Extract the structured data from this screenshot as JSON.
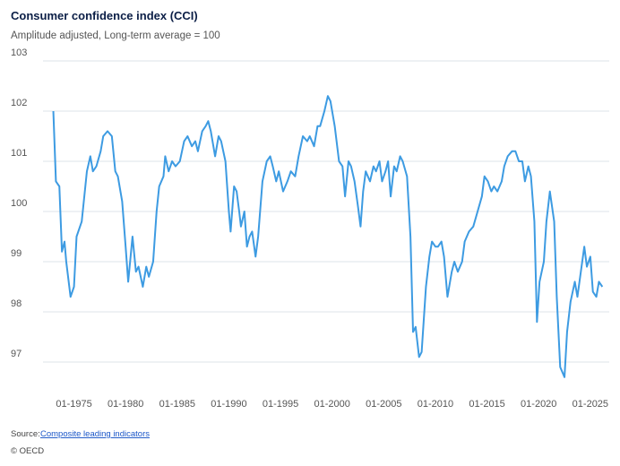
{
  "chart_data": {
    "type": "line",
    "title": "Consumer confidence index (CCI)",
    "subtitle": "Amplitude adjusted, Long-term average = 100",
    "source_label": "Source:",
    "source_link": "Composite leading indicators",
    "copyright": "© OECD",
    "color": "#3d9be2",
    "grid": true,
    "xlim": [
      "1972-01",
      "2026-11"
    ],
    "ylim": [
      96.5,
      103
    ],
    "yticks": [
      97,
      98,
      99,
      100,
      101,
      102,
      103
    ],
    "xticks": [
      {
        "value": "1975-01",
        "label": "01-1975"
      },
      {
        "value": "1980-01",
        "label": "01-1980"
      },
      {
        "value": "1985-01",
        "label": "01-1985"
      },
      {
        "value": "1990-01",
        "label": "01-1990"
      },
      {
        "value": "1995-01",
        "label": "01-1995"
      },
      {
        "value": "2000-01",
        "label": "01-2000"
      },
      {
        "value": "2005-01",
        "label": "01-2005"
      },
      {
        "value": "2010-01",
        "label": "01-2010"
      },
      {
        "value": "2015-01",
        "label": "01-2015"
      },
      {
        "value": "2020-01",
        "label": "01-2020"
      },
      {
        "value": "2025-01",
        "label": "01-2025"
      }
    ],
    "x": [
      "1973-01",
      "1973-04",
      "1973-08",
      "1973-11",
      "1974-02",
      "1974-04",
      "1974-09",
      "1975-01",
      "1975-04",
      "1975-10",
      "1976-04",
      "1976-08",
      "1976-11",
      "1977-03",
      "1977-08",
      "1977-11",
      "1978-04",
      "1978-09",
      "1979-01",
      "1979-04",
      "1979-09",
      "1980-01",
      "1980-04",
      "1980-09",
      "1981-01",
      "1981-04",
      "1981-09",
      "1982-01",
      "1982-04",
      "1982-09",
      "1983-01",
      "1983-04",
      "1983-09",
      "1983-11",
      "1984-03",
      "1984-07",
      "1984-11",
      "1985-04",
      "1985-09",
      "1986-01",
      "1986-06",
      "1986-10",
      "1987-01",
      "1987-06",
      "1987-10",
      "1988-01",
      "1988-04",
      "1988-09",
      "1989-01",
      "1989-04",
      "1989-09",
      "1990-01",
      "1990-03",
      "1990-07",
      "1990-10",
      "1991-01",
      "1991-03",
      "1991-07",
      "1991-10",
      "1992-01",
      "1992-04",
      "1992-08",
      "1992-11",
      "1993-04",
      "1993-09",
      "1994-01",
      "1994-04",
      "1994-08",
      "1994-11",
      "1995-04",
      "1995-09",
      "1996-01",
      "1996-06",
      "1996-10",
      "1997-03",
      "1997-08",
      "1997-11",
      "1998-04",
      "1998-08",
      "1998-11",
      "1999-04",
      "1999-08",
      "1999-11",
      "2000-04",
      "2000-09",
      "2001-01",
      "2001-04",
      "2001-08",
      "2001-11",
      "2002-03",
      "2002-07",
      "2002-10",
      "2003-01",
      "2003-04",
      "2003-09",
      "2004-01",
      "2004-04",
      "2004-08",
      "2004-11",
      "2005-03",
      "2005-06",
      "2005-09",
      "2006-01",
      "2006-04",
      "2006-08",
      "2006-11",
      "2007-04",
      "2007-08",
      "2007-11",
      "2008-02",
      "2008-06",
      "2008-09",
      "2009-02",
      "2009-06",
      "2009-09",
      "2010-01",
      "2010-04",
      "2010-08",
      "2010-11",
      "2011-03",
      "2011-08",
      "2011-11",
      "2012-03",
      "2012-08",
      "2012-11",
      "2013-04",
      "2013-09",
      "2014-02",
      "2014-07",
      "2014-10",
      "2015-02",
      "2015-06",
      "2015-09",
      "2016-01",
      "2016-06",
      "2016-09",
      "2017-01",
      "2017-06",
      "2017-10",
      "2018-02",
      "2018-06",
      "2018-09",
      "2019-01",
      "2019-04",
      "2019-08",
      "2019-11",
      "2020-02",
      "2020-07",
      "2020-10",
      "2021-02",
      "2021-07",
      "2021-10",
      "2022-02",
      "2022-07",
      "2022-10",
      "2023-02",
      "2023-07",
      "2023-10",
      "2024-02",
      "2024-06",
      "2024-09",
      "2025-01",
      "2025-04",
      "2025-08",
      "2025-11",
      "2026-03"
    ],
    "values": [
      102.0,
      100.6,
      100.5,
      99.2,
      99.4,
      99.0,
      98.3,
      98.5,
      99.5,
      99.8,
      100.8,
      101.1,
      100.8,
      100.9,
      101.2,
      101.5,
      101.6,
      101.5,
      100.8,
      100.7,
      100.2,
      99.3,
      98.6,
      99.5,
      98.8,
      98.9,
      98.5,
      98.9,
      98.7,
      99.0,
      100.0,
      100.5,
      100.7,
      101.1,
      100.8,
      101.0,
      100.9,
      101.0,
      101.4,
      101.5,
      101.3,
      101.4,
      101.2,
      101.6,
      101.7,
      101.8,
      101.6,
      101.1,
      101.5,
      101.4,
      101.0,
      100.0,
      99.6,
      100.5,
      100.4,
      100.0,
      99.7,
      100.0,
      99.3,
      99.5,
      99.6,
      99.1,
      99.5,
      100.6,
      101.0,
      101.1,
      100.9,
      100.6,
      100.8,
      100.4,
      100.6,
      100.8,
      100.7,
      101.1,
      101.5,
      101.4,
      101.5,
      101.3,
      101.7,
      101.7,
      102.0,
      102.3,
      102.2,
      101.7,
      101.0,
      100.9,
      100.3,
      101.0,
      100.9,
      100.6,
      100.1,
      99.7,
      100.4,
      100.8,
      100.6,
      100.9,
      100.8,
      101.0,
      100.6,
      100.8,
      101.0,
      100.3,
      100.9,
      100.8,
      101.1,
      101.0,
      100.7,
      99.5,
      97.6,
      97.7,
      97.1,
      97.2,
      98.5,
      99.1,
      99.4,
      99.3,
      99.3,
      99.4,
      99.1,
      98.3,
      98.8,
      99.0,
      98.8,
      99.0,
      99.4,
      99.6,
      99.7,
      100.0,
      100.3,
      100.7,
      100.6,
      100.4,
      100.5,
      100.4,
      100.6,
      100.9,
      101.1,
      101.2,
      101.2,
      101.0,
      101.0,
      100.6,
      100.9,
      100.7,
      99.8,
      97.8,
      98.6,
      99.0,
      99.8,
      100.4,
      99.8,
      98.3,
      96.9,
      96.7,
      97.6,
      98.2,
      98.6,
      98.3,
      98.8,
      99.3,
      98.9,
      99.1,
      98.4,
      98.3,
      98.6,
      98.5
    ]
  }
}
